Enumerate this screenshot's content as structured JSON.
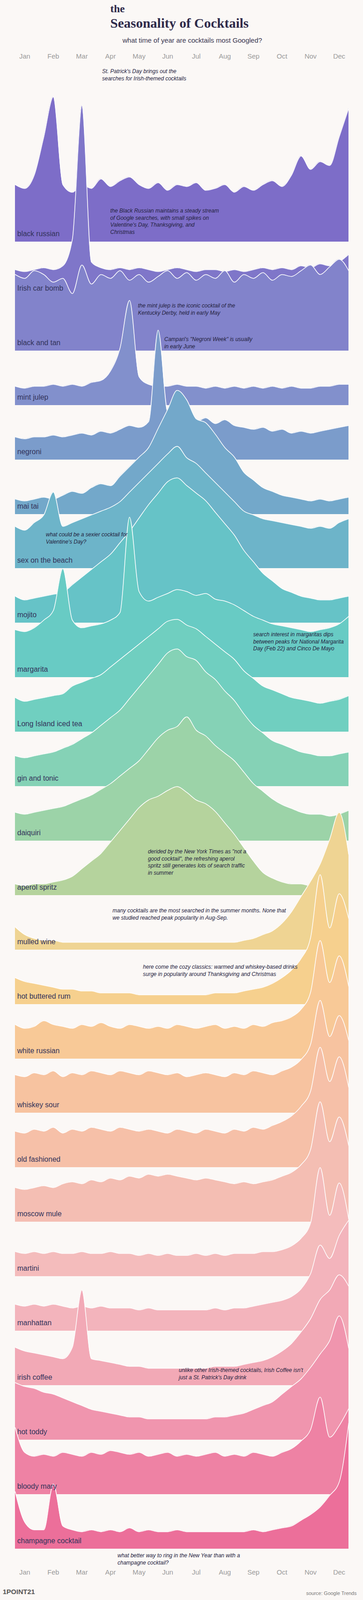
{
  "chart_data": {
    "type": "area",
    "title": "the Seasonality of Cocktails",
    "subtitle": "what time of year are cocktails most Googled?",
    "categories": [
      null,
      "Jan",
      null,
      null,
      "Feb",
      null,
      null,
      "Mar",
      null,
      null,
      "Apr",
      null,
      null,
      "May",
      null,
      null,
      "Jun",
      null,
      null,
      "Jul",
      null,
      null,
      "Aug",
      null,
      null,
      "Sep",
      null,
      null,
      "Oct",
      null,
      null,
      "Nov",
      null,
      null,
      "Dec",
      null
    ],
    "ylim": [
      0,
      100
    ],
    "tick_labels": "x",
    "series": [
      {
        "name": "black russian",
        "color": "#7d6dc8",
        "values": [
          30,
          28,
          35,
          55,
          76,
          30,
          26,
          30,
          28,
          33,
          29,
          32,
          34,
          30,
          28,
          31,
          27,
          30,
          29,
          31,
          27,
          28,
          30,
          26,
          29,
          27,
          30,
          32,
          29,
          35,
          45,
          38,
          42,
          40,
          55,
          70
        ]
      },
      {
        "name": "Irish car bomb",
        "color": "#7f76c9",
        "values": [
          14,
          13,
          14,
          15,
          14,
          16,
          30,
          100,
          18,
          15,
          14,
          15,
          14,
          15,
          14,
          13,
          14,
          15,
          14,
          13,
          14,
          14,
          13,
          14,
          13,
          14,
          15,
          14,
          15,
          14,
          16,
          15,
          17,
          16,
          18,
          22
        ]
      },
      {
        "name": "black and tan",
        "color": "#8283cb",
        "values": [
          40,
          38,
          42,
          40,
          36,
          38,
          30,
          45,
          35,
          40,
          38,
          42,
          37,
          40,
          36,
          39,
          42,
          38,
          41,
          37,
          40,
          38,
          42,
          36,
          40,
          38,
          41,
          37,
          40,
          39,
          42,
          45,
          40,
          44,
          48,
          42
        ]
      },
      {
        "name": "mint julep",
        "color": "#8290cc",
        "values": [
          10,
          9,
          10,
          10,
          11,
          10,
          11,
          10,
          12,
          13,
          18,
          30,
          55,
          15,
          11,
          10,
          10,
          11,
          10,
          10,
          9,
          10,
          9,
          10,
          9,
          10,
          9,
          10,
          9,
          10,
          9,
          9,
          10,
          10,
          11,
          11
        ]
      },
      {
        "name": "negroni",
        "color": "#7b9ccb",
        "values": [
          12,
          11,
          12,
          12,
          13,
          12,
          13,
          14,
          13,
          15,
          14,
          16,
          18,
          17,
          20,
          68,
          25,
          22,
          24,
          20,
          22,
          19,
          21,
          18,
          17,
          16,
          17,
          15,
          16,
          14,
          15,
          14,
          15,
          16,
          17,
          18
        ]
      },
      {
        "name": "mai tai",
        "color": "#73a8ca",
        "values": [
          8,
          7,
          8,
          9,
          8,
          10,
          12,
          11,
          14,
          16,
          15,
          20,
          25,
          30,
          35,
          45,
          55,
          65,
          60,
          50,
          48,
          42,
          35,
          30,
          22,
          18,
          14,
          12,
          10,
          9,
          8,
          7,
          8,
          7,
          8,
          9
        ]
      },
      {
        "name": "sex on the beach",
        "color": "#6db4c9",
        "values": [
          22,
          20,
          24,
          28,
          40,
          22,
          24,
          26,
          28,
          30,
          32,
          35,
          40,
          45,
          50,
          55,
          60,
          64,
          58,
          55,
          50,
          45,
          40,
          35,
          30,
          28,
          26,
          25,
          24,
          23,
          22,
          21,
          22,
          21,
          24,
          26
        ]
      },
      {
        "name": "mojito",
        "color": "#66c3c7",
        "values": [
          14,
          12,
          13,
          14,
          15,
          16,
          20,
          24,
          28,
          32,
          36,
          42,
          48,
          55,
          62,
          68,
          74,
          76,
          72,
          68,
          64,
          58,
          52,
          46,
          38,
          32,
          26,
          22,
          18,
          16,
          14,
          13,
          12,
          12,
          13,
          14
        ]
      },
      {
        "name": "margarita",
        "color": "#68cbc4",
        "values": [
          25,
          24,
          26,
          30,
          35,
          57,
          30,
          26,
          27,
          28,
          30,
          34,
          84,
          45,
          40,
          42,
          44,
          46,
          45,
          43,
          44,
          41,
          40,
          38,
          35,
          32,
          30,
          28,
          27,
          26,
          25,
          24,
          25,
          26,
          28,
          32
        ]
      },
      {
        "name": "Long Island iced tea",
        "color": "#70cfc0",
        "values": [
          18,
          16,
          17,
          18,
          19,
          20,
          24,
          26,
          28,
          30,
          34,
          38,
          42,
          46,
          50,
          54,
          58,
          59,
          56,
          54,
          50,
          46,
          42,
          38,
          32,
          28,
          24,
          22,
          20,
          18,
          17,
          16,
          15,
          16,
          17,
          19
        ]
      },
      {
        "name": "gin and tonic",
        "color": "#85d2b6",
        "values": [
          16,
          15,
          16,
          17,
          18,
          20,
          22,
          25,
          28,
          32,
          36,
          40,
          46,
          52,
          58,
          64,
          70,
          72,
          68,
          66,
          60,
          56,
          50,
          45,
          38,
          32,
          28,
          24,
          22,
          20,
          18,
          17,
          16,
          16,
          17,
          18
        ]
      },
      {
        "name": "daiquiri",
        "color": "#9cd3a8",
        "values": [
          15,
          14,
          15,
          16,
          17,
          18,
          20,
          22,
          24,
          27,
          30,
          34,
          38,
          42,
          48,
          54,
          58,
          60,
          65,
          58,
          55,
          50,
          46,
          42,
          36,
          30,
          26,
          22,
          19,
          17,
          15,
          14,
          14,
          13,
          14,
          16
        ]
      },
      {
        "name": "aperol spritz",
        "color": "#b5d39d",
        "values": [
          6,
          5,
          6,
          6,
          7,
          8,
          10,
          14,
          18,
          22,
          28,
          34,
          40,
          46,
          50,
          52,
          55,
          57,
          54,
          50,
          48,
          44,
          38,
          32,
          25,
          18,
          12,
          9,
          7,
          6,
          6,
          5,
          5,
          6,
          7,
          8
        ]
      },
      {
        "name": "mulled wine",
        "color": "#efd493",
        "values": [
          12,
          8,
          6,
          5,
          5,
          4,
          4,
          4,
          4,
          4,
          4,
          4,
          4,
          4,
          4,
          4,
          4,
          4,
          4,
          4,
          4,
          4,
          4,
          4,
          5,
          6,
          8,
          10,
          14,
          20,
          28,
          36,
          45,
          58,
          72,
          50
        ]
      },
      {
        "name": "hot buttered rum",
        "color": "#f6d08e",
        "values": [
          14,
          12,
          11,
          10,
          9,
          8,
          8,
          7,
          7,
          6,
          6,
          6,
          6,
          5,
          5,
          5,
          5,
          5,
          5,
          5,
          5,
          6,
          6,
          6,
          7,
          8,
          9,
          11,
          14,
          18,
          24,
          35,
          68,
          40,
          58,
          45
        ]
      },
      {
        "name": "white russian",
        "color": "#f8c997",
        "values": [
          18,
          16,
          17,
          20,
          18,
          17,
          16,
          18,
          17,
          19,
          17,
          16,
          18,
          17,
          16,
          17,
          16,
          18,
          17,
          16,
          17,
          18,
          16,
          17,
          16,
          18,
          17,
          19,
          20,
          22,
          26,
          35,
          62,
          40,
          54,
          38
        ]
      },
      {
        "name": "whiskey sour",
        "color": "#f7c3a0",
        "values": [
          20,
          19,
          21,
          20,
          22,
          19,
          21,
          20,
          22,
          21,
          20,
          22,
          21,
          20,
          22,
          21,
          20,
          21,
          19,
          20,
          21,
          20,
          19,
          21,
          20,
          22,
          21,
          20,
          22,
          24,
          28,
          36,
          59,
          40,
          51,
          38
        ]
      },
      {
        "name": "old fashioned",
        "color": "#f6c0a8",
        "values": [
          19,
          18,
          20,
          19,
          21,
          18,
          20,
          19,
          21,
          20,
          19,
          21,
          20,
          19,
          20,
          19,
          18,
          20,
          19,
          18,
          20,
          19,
          18,
          20,
          19,
          21,
          20,
          22,
          24,
          27,
          32,
          40,
          63,
          45,
          58,
          42
        ]
      },
      {
        "name": "moscow mule",
        "color": "#f4beb3",
        "values": [
          18,
          17,
          18,
          19,
          18,
          20,
          21,
          20,
          22,
          21,
          23,
          22,
          24,
          23,
          25,
          24,
          25,
          24,
          23,
          22,
          23,
          22,
          21,
          20,
          21,
          20,
          21,
          22,
          24,
          26,
          30,
          38,
          63,
          42,
          55,
          40
        ]
      },
      {
        "name": "martini",
        "color": "#f4bcbc",
        "values": [
          13,
          12,
          13,
          12,
          13,
          12,
          12,
          13,
          12,
          12,
          13,
          12,
          12,
          11,
          12,
          11,
          12,
          11,
          11,
          12,
          11,
          12,
          11,
          12,
          12,
          12,
          13,
          13,
          14,
          16,
          20,
          28,
          57,
          32,
          49,
          30
        ]
      },
      {
        "name": "manhattan",
        "color": "#f3b4bc",
        "values": [
          14,
          13,
          14,
          13,
          14,
          13,
          12,
          13,
          12,
          13,
          12,
          12,
          12,
          11,
          12,
          11,
          11,
          11,
          11,
          11,
          11,
          12,
          11,
          12,
          12,
          13,
          14,
          15,
          16,
          18,
          22,
          30,
          45,
          38,
          50,
          58
        ]
      },
      {
        "name": "irish coffee",
        "color": "#f2a9b6",
        "values": [
          20,
          18,
          17,
          16,
          15,
          14,
          20,
          50,
          14,
          13,
          12,
          11,
          10,
          10,
          9,
          9,
          9,
          9,
          9,
          9,
          9,
          10,
          10,
          10,
          11,
          12,
          13,
          15,
          18,
          22,
          28,
          35,
          45,
          50,
          58,
          52
        ]
      },
      {
        "name": "hot toddy",
        "color": "#f095ae",
        "values": [
          30,
          28,
          27,
          25,
          24,
          22,
          20,
          18,
          16,
          15,
          14,
          13,
          12,
          12,
          11,
          11,
          11,
          11,
          11,
          11,
          11,
          12,
          12,
          13,
          14,
          16,
          18,
          20,
          24,
          28,
          32,
          38,
          45,
          52,
          65,
          48
        ]
      },
      {
        "name": "bloody mary",
        "color": "#ee82a4",
        "values": [
          35,
          22,
          20,
          21,
          20,
          22,
          21,
          20,
          22,
          21,
          23,
          22,
          21,
          22,
          20,
          21,
          22,
          20,
          21,
          20,
          21,
          22,
          20,
          21,
          20,
          22,
          21,
          20,
          22,
          24,
          28,
          34,
          51,
          30,
          36,
          45
        ]
      },
      {
        "name": "champagne cocktail",
        "color": "#ec6f9a",
        "values": [
          30,
          14,
          10,
          10,
          34,
          12,
          10,
          9,
          10,
          9,
          10,
          9,
          11,
          9,
          10,
          9,
          9,
          10,
          9,
          9,
          9,
          9,
          9,
          9,
          9,
          10,
          9,
          10,
          11,
          12,
          15,
          18,
          22,
          28,
          35,
          66
        ]
      }
    ],
    "annotations": [
      {
        "text": "St. Patrick's Day brings out the searches for Irish-themed cocktails"
      },
      {
        "text": "the Black Russian maintains a steady stream of Google searches, with small spikes on Valentine's Day, Thanksgiving, and Christmas"
      },
      {
        "text": "the mint julep is the iconic cocktail of the Kentucky Derby, held in early May"
      },
      {
        "text": "Campari's \"Negroni Week\" is usually in early June"
      },
      {
        "text": "what could be a sexier cocktail for Valentine's Day?"
      },
      {
        "text": "search interest in margaritas dips between peaks for National Margarita Day (Feb 22) and Cinco De Mayo"
      },
      {
        "text": "derided by the New York Times as \"not a good cocktail\", the refreshing aperol spritz still generates lots of search traffic in summer"
      },
      {
        "text": "many cocktails are the most searched in the summer months. None that we studied reached peak popularity in Aug-Sep."
      },
      {
        "text": "here come the cozy classics: warmed and whiskey-based drinks surge in popularity around Thanksgiving and Christmas"
      },
      {
        "text": "unlike other Irish-themed cocktails, Irish Coffee isn't just a St. Patrick's Day drink"
      },
      {
        "text": "what better way to ring in the New Year than with a champagne cocktail?"
      }
    ],
    "source": "source: Google Trends",
    "credit": "1POINT21"
  }
}
